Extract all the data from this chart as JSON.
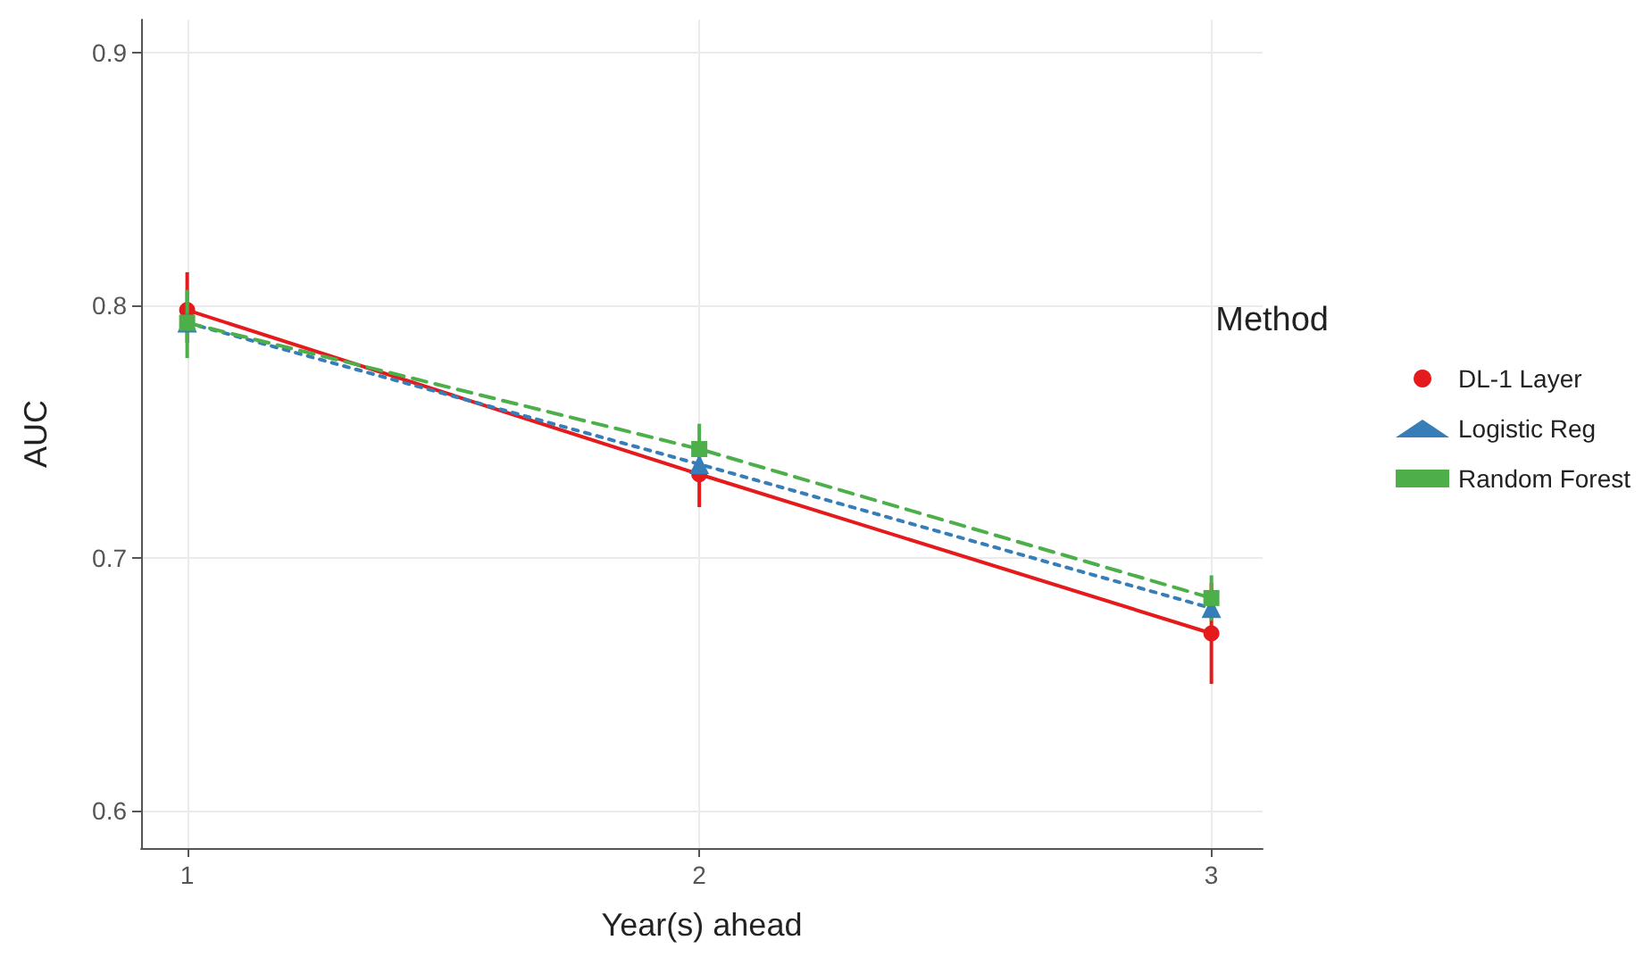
{
  "chart_data": {
    "type": "line",
    "xlabel": "Year(s) ahead",
    "ylabel": "AUC",
    "legend_title": "Method",
    "x": [
      1,
      2,
      3
    ],
    "xlim": [
      0.91,
      3.1
    ],
    "xticks": [
      1,
      2,
      3
    ],
    "ylim": [
      0.585,
      0.913
    ],
    "yticks": [
      0.6,
      0.7,
      0.8,
      0.9
    ],
    "grid": true,
    "legend": "right",
    "series": [
      {
        "name": "DL-1 Layer",
        "color": "#e41a1c",
        "values": [
          0.798,
          0.733,
          0.67
        ],
        "errors": [
          [
            0.785,
            0.813
          ],
          [
            0.72,
            0.745
          ],
          [
            0.65,
            0.69
          ]
        ],
        "marker": "circle",
        "line_style": "solid"
      },
      {
        "name": "Logistic Reg",
        "color": "#377eb8",
        "values": [
          0.793,
          0.737,
          0.68
        ],
        "marker": "triangle",
        "line_style": "dotted"
      },
      {
        "name": "Random Forest",
        "color": "#4daf4a",
        "values": [
          0.793,
          0.743,
          0.684
        ],
        "errors": [
          [
            0.779,
            0.806
          ],
          [
            0.733,
            0.753
          ],
          [
            0.675,
            0.693
          ]
        ],
        "marker": "square",
        "line_style": "dashed"
      }
    ]
  }
}
